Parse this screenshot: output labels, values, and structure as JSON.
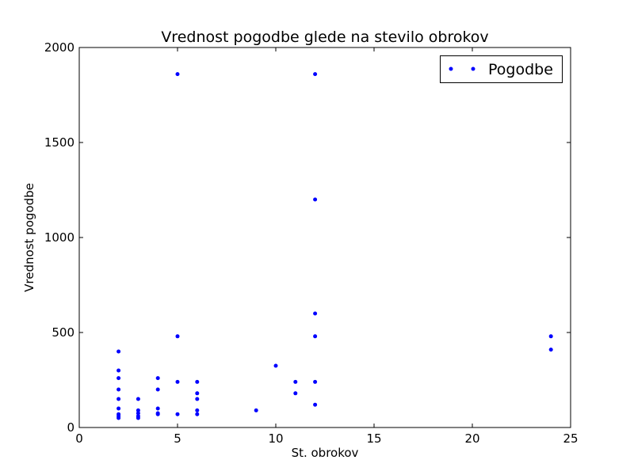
{
  "chart_data": {
    "type": "scatter",
    "title": "Vrednost pogodbe glede na stevilo obrokov",
    "xlabel": "St. obrokov",
    "ylabel": "Vrednost pogodbe",
    "xlim": [
      0,
      25
    ],
    "ylim": [
      0,
      2000
    ],
    "xticks": [
      "0",
      "5",
      "10",
      "15",
      "20",
      "25"
    ],
    "yticks": [
      "0",
      "500",
      "1000",
      "1500",
      "2000"
    ],
    "grid": false,
    "legend_position": "top-right",
    "marker_color": "#0000ff",
    "series": [
      {
        "name": "Pogodbe",
        "points": [
          [
            2,
            400
          ],
          [
            2,
            300
          ],
          [
            2,
            260
          ],
          [
            2,
            200
          ],
          [
            2,
            150
          ],
          [
            2,
            100
          ],
          [
            2,
            70
          ],
          [
            2,
            60
          ],
          [
            2,
            50
          ],
          [
            3,
            150
          ],
          [
            3,
            90
          ],
          [
            3,
            75
          ],
          [
            3,
            60
          ],
          [
            3,
            50
          ],
          [
            4,
            260
          ],
          [
            4,
            200
          ],
          [
            4,
            100
          ],
          [
            4,
            75
          ],
          [
            4,
            70
          ],
          [
            5,
            1860
          ],
          [
            5,
            480
          ],
          [
            5,
            240
          ],
          [
            5,
            70
          ],
          [
            6,
            240
          ],
          [
            6,
            180
          ],
          [
            6,
            150
          ],
          [
            6,
            90
          ],
          [
            6,
            70
          ],
          [
            9,
            90
          ],
          [
            10,
            325
          ],
          [
            11,
            240
          ],
          [
            11,
            180
          ],
          [
            12,
            1860
          ],
          [
            12,
            1200
          ],
          [
            12,
            600
          ],
          [
            12,
            480
          ],
          [
            12,
            240
          ],
          [
            12,
            120
          ],
          [
            24,
            480
          ],
          [
            24,
            410
          ]
        ]
      }
    ]
  }
}
